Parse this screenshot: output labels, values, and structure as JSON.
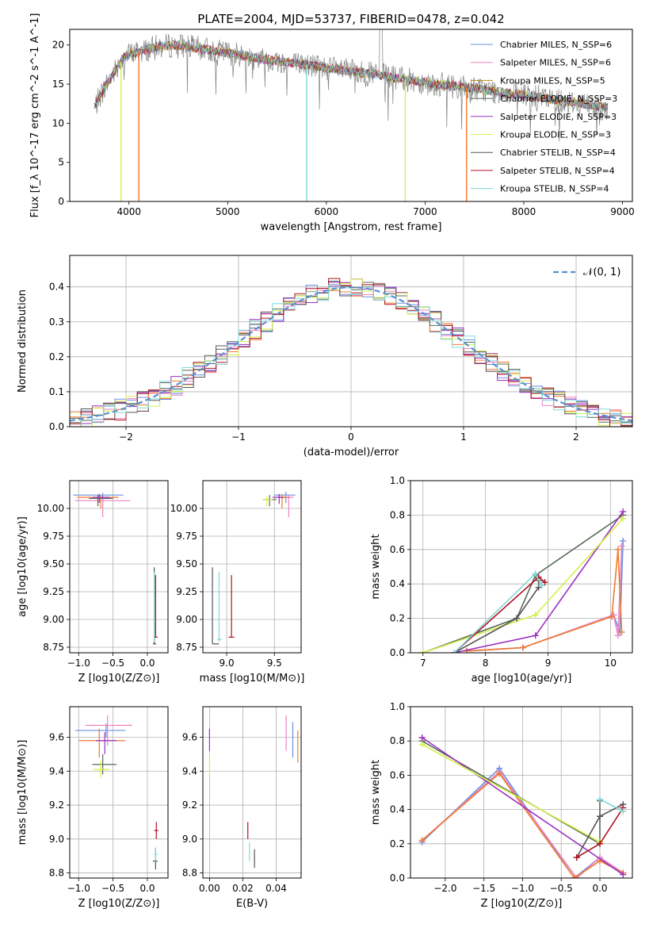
{
  "figure": {
    "title": "PLATE=2004, MJD=53737, FIBERID=0478, z=0.042"
  },
  "colors": {
    "chabrier_miles": "#6a8fe0",
    "salpeter_miles": "#ee82c0",
    "kroupa_miles": "#b8860b",
    "chabrier_elodie": "#556b55",
    "salpeter_elodie": "#9b30c0",
    "kroupa_elodie": "#d4f04a",
    "chabrier_stelib": "#555555",
    "salpeter_stelib": "#b01020",
    "kroupa_stelib": "#80d8d8",
    "orange": "#f07a30",
    "normal": "#5b8fd0",
    "grid": "#b0b0b0"
  },
  "chart_data": [
    {
      "id": "spectrum",
      "type": "line",
      "xlabel": "wavelength [Angstrom, rest frame]",
      "ylabel": "Flux [f_λ 10^-17 erg cm^-2 s^-1 A^-1]",
      "xlim": [
        3400,
        9100
      ],
      "ylim": [
        0,
        22
      ],
      "xticks": [
        4000,
        5000,
        6000,
        7000,
        8000,
        9000
      ],
      "yticks": [
        0,
        5,
        10,
        15,
        20
      ],
      "grid": false,
      "legend_position": "top-right",
      "continuum": {
        "x": [
          3650,
          3750,
          3850,
          3950,
          4050,
          4150,
          4300,
          4500,
          4700,
          5000,
          5300,
          5600,
          5900,
          6200,
          6500,
          6800,
          7100,
          7400,
          7700,
          8000,
          8300,
          8600,
          8850
        ],
        "y": [
          12.0,
          14.5,
          16.5,
          18.5,
          19.0,
          19.3,
          19.8,
          20.0,
          19.6,
          19.0,
          18.3,
          17.8,
          17.3,
          16.7,
          16.2,
          15.6,
          15.0,
          14.6,
          14.1,
          13.6,
          13.0,
          12.5,
          12.0
        ]
      },
      "series": [
        {
          "name": "Chabrier MILES, N_SSP=6",
          "color_key": "chabrier_miles"
        },
        {
          "name": "Salpeter MILES, N_SSP=6",
          "color_key": "salpeter_miles"
        },
        {
          "name": "Kroupa MILES, N_SSP=5",
          "color_key": "kroupa_miles"
        },
        {
          "name": "Chabrier ELODIE, N_SSP=3",
          "color_key": "chabrier_elodie"
        },
        {
          "name": "Salpeter ELODIE, N_SSP=3",
          "color_key": "salpeter_elodie"
        },
        {
          "name": "Kroupa ELODIE, N_SSP=3",
          "color_key": "kroupa_elodie"
        },
        {
          "name": "Chabrier STELIB, N_SSP=4",
          "color_key": "chabrier_stelib"
        },
        {
          "name": "Salpeter STELIB, N_SSP=4",
          "color_key": "salpeter_stelib"
        },
        {
          "name": "Kroupa STELIB, N_SSP=4",
          "color_key": "kroupa_stelib"
        }
      ],
      "drops": [
        {
          "x": 3920,
          "color_key": "kroupa_elodie"
        },
        {
          "x": 4100,
          "color_key": "orange"
        },
        {
          "x": 5800,
          "color_key": "kroupa_stelib"
        },
        {
          "x": 6800,
          "color_key": "kroupa_elodie"
        },
        {
          "x": 7420,
          "color_key": "orange"
        }
      ]
    },
    {
      "id": "residuals",
      "type": "histogram",
      "xlabel": "(data-model)/error",
      "ylabel": "Normed distribution",
      "xlim": [
        -2.5,
        2.5
      ],
      "ylim": [
        0,
        0.49
      ],
      "xticks": [
        -2,
        -1,
        0,
        1,
        2
      ],
      "yticks": [
        0.0,
        0.1,
        0.2,
        0.3,
        0.4
      ],
      "grid": true,
      "legend_position": "top-right",
      "legend": "𝒩(0, 1)",
      "bin_width": 0.1
    },
    {
      "id": "age_vs_Z",
      "type": "errorbar",
      "xlabel": "Z [log10(Z/Z⊙)]",
      "ylabel": "age  [log10(age/yr)]",
      "xlim": [
        -1.13,
        0.3
      ],
      "ylim": [
        8.7,
        10.25
      ],
      "xticks": [
        -1.0,
        -0.5,
        0.0
      ],
      "yticks": [
        8.75,
        9.0,
        9.25,
        9.5,
        9.75,
        10.0
      ],
      "grid": true,
      "points": [
        {
          "x": -0.65,
          "xlo": -1.08,
          "xhi": -0.35,
          "y": 10.12,
          "ylo": 10.05,
          "yhi": 10.14,
          "color_key": "chabrier_miles"
        },
        {
          "x": -0.65,
          "xlo": -1.05,
          "xhi": -0.25,
          "y": 10.07,
          "ylo": 9.92,
          "yhi": 10.1,
          "color_key": "salpeter_miles"
        },
        {
          "x": -0.68,
          "xlo": -1.02,
          "xhi": -0.42,
          "y": 10.1,
          "ylo": 10.0,
          "yhi": 10.12,
          "color_key": "orange"
        },
        {
          "x": -0.72,
          "xlo": -0.85,
          "xhi": -0.5,
          "y": 10.09,
          "ylo": 10.02,
          "yhi": 10.12,
          "color_key": "chabrier_elodie"
        },
        {
          "x": -0.7,
          "xlo": -0.8,
          "xhi": -0.55,
          "y": 10.1,
          "ylo": 10.05,
          "yhi": 10.13,
          "color_key": "salpeter_elodie"
        },
        {
          "x": 0.1,
          "xlo": 0.08,
          "xhi": 0.13,
          "y": 8.78,
          "ylo": 8.78,
          "yhi": 9.47,
          "color_key": "chabrier_stelib"
        },
        {
          "x": 0.12,
          "xlo": 0.1,
          "xhi": 0.15,
          "y": 8.84,
          "ylo": 8.84,
          "yhi": 9.4,
          "color_key": "salpeter_stelib"
        },
        {
          "x": 0.1,
          "xlo": 0.09,
          "xhi": 0.12,
          "y": 8.82,
          "ylo": 8.8,
          "yhi": 9.43,
          "color_key": "kroupa_stelib"
        }
      ]
    },
    {
      "id": "age_vs_mass",
      "type": "errorbar",
      "xlabel": "mass [log10(M/M⊙)]",
      "ylabel": "",
      "xlim": [
        8.75,
        9.78
      ],
      "ylim": [
        8.7,
        10.25
      ],
      "xticks": [
        9.0,
        9.5
      ],
      "yticks": [
        8.75,
        9.0,
        9.25,
        9.5,
        9.75,
        10.0
      ],
      "grid": true,
      "points": [
        {
          "x": 9.62,
          "xlo": 9.5,
          "xhi": 9.72,
          "y": 10.12,
          "ylo": 10.05,
          "yhi": 10.15,
          "color_key": "chabrier_miles"
        },
        {
          "x": 9.65,
          "xlo": 9.55,
          "xhi": 9.7,
          "y": 10.1,
          "ylo": 9.92,
          "yhi": 10.12,
          "color_key": "salpeter_miles"
        },
        {
          "x": 9.58,
          "xlo": 9.5,
          "xhi": 9.65,
          "y": 10.1,
          "ylo": 10.0,
          "yhi": 10.13,
          "color_key": "orange"
        },
        {
          "x": 9.45,
          "xlo": 9.38,
          "xhi": 9.52,
          "y": 10.08,
          "ylo": 10.02,
          "yhi": 10.12,
          "color_key": "chabrier_elodie"
        },
        {
          "x": 9.55,
          "xlo": 9.48,
          "xhi": 9.6,
          "y": 10.1,
          "ylo": 10.04,
          "yhi": 10.13,
          "color_key": "salpeter_elodie"
        },
        {
          "x": 9.42,
          "xlo": 9.38,
          "xhi": 9.48,
          "y": 10.08,
          "ylo": 10.02,
          "yhi": 10.11,
          "color_key": "kroupa_elodie"
        },
        {
          "x": 8.85,
          "xlo": 8.85,
          "xhi": 8.92,
          "y": 8.78,
          "ylo": 8.78,
          "yhi": 9.47,
          "color_key": "chabrier_stelib"
        },
        {
          "x": 9.05,
          "xlo": 9.02,
          "xhi": 9.08,
          "y": 8.84,
          "ylo": 8.84,
          "yhi": 9.4,
          "color_key": "salpeter_stelib"
        },
        {
          "x": 8.92,
          "xlo": 8.9,
          "xhi": 8.95,
          "y": 8.82,
          "ylo": 8.8,
          "yhi": 9.43,
          "color_key": "kroupa_stelib"
        }
      ]
    },
    {
      "id": "mass_weight_vs_age",
      "type": "line",
      "xlabel": "age  [log10(age/yr)]",
      "ylabel": "mass weight",
      "xlim": [
        6.8,
        10.35
      ],
      "ylim": [
        0,
        1.0
      ],
      "xticks": [
        7,
        8,
        9,
        10
      ],
      "yticks": [
        0.0,
        0.2,
        0.4,
        0.6,
        0.8,
        1.0
      ],
      "grid": true,
      "series": [
        {
          "color_key": "chabrier_miles",
          "x": [
            7.7,
            8.6,
            10.05,
            10.15,
            10.2
          ],
          "y": [
            0.01,
            0.03,
            0.22,
            0.12,
            0.65
          ]
        },
        {
          "color_key": "salpeter_miles",
          "x": [
            7.7,
            8.6,
            10.05,
            10.12,
            10.18
          ],
          "y": [
            0.01,
            0.03,
            0.22,
            0.1,
            0.62
          ]
        },
        {
          "color_key": "orange",
          "x": [
            7.7,
            8.6,
            10.02,
            10.12,
            10.18
          ],
          "y": [
            0.01,
            0.03,
            0.21,
            0.6,
            0.12
          ]
        },
        {
          "color_key": "chabrier_elodie",
          "x": [
            7.0,
            8.5,
            8.8,
            10.2
          ],
          "y": [
            0.0,
            0.2,
            0.45,
            0.8
          ]
        },
        {
          "color_key": "salpeter_elodie",
          "x": [
            7.5,
            8.8,
            10.2
          ],
          "y": [
            0.0,
            0.1,
            0.82
          ]
        },
        {
          "color_key": "kroupa_elodie",
          "x": [
            7.0,
            8.8,
            10.2
          ],
          "y": [
            0.0,
            0.22,
            0.78
          ]
        },
        {
          "color_key": "chabrier_stelib",
          "x": [
            7.5,
            8.5,
            8.85,
            8.85
          ],
          "y": [
            0.0,
            0.2,
            0.38,
            0.42
          ]
        },
        {
          "color_key": "salpeter_stelib",
          "x": [
            7.5,
            8.85,
            8.95
          ],
          "y": [
            0.0,
            0.44,
            0.41
          ]
        },
        {
          "color_key": "kroupa_stelib",
          "x": [
            7.5,
            8.8,
            8.9
          ],
          "y": [
            0.0,
            0.46,
            0.39
          ]
        }
      ]
    },
    {
      "id": "mass_vs_Z",
      "type": "errorbar",
      "xlabel": "Z [log10(Z/Z⊙)]",
      "ylabel": "mass [log10(M/M⊙)]",
      "xlim": [
        -1.13,
        0.3
      ],
      "ylim": [
        8.77,
        9.78
      ],
      "xticks": [
        -1.0,
        -0.5,
        0.0
      ],
      "yticks": [
        8.8,
        9.0,
        9.2,
        9.4,
        9.6
      ],
      "grid": true,
      "points": [
        {
          "x": -0.6,
          "xlo": -1.05,
          "xhi": -0.32,
          "y": 9.64,
          "ylo": 9.6,
          "yhi": 9.68,
          "color_key": "chabrier_miles"
        },
        {
          "x": -0.58,
          "xlo": -0.9,
          "xhi": -0.22,
          "y": 9.67,
          "ylo": 9.55,
          "yhi": 9.73,
          "color_key": "salpeter_miles"
        },
        {
          "x": -0.7,
          "xlo": -1.0,
          "xhi": -0.32,
          "y": 9.58,
          "ylo": 9.48,
          "yhi": 9.65,
          "color_key": "orange"
        },
        {
          "x": -0.65,
          "xlo": -0.8,
          "xhi": -0.45,
          "y": 9.44,
          "ylo": 9.38,
          "yhi": 9.5,
          "color_key": "chabrier_elodie"
        },
        {
          "x": -0.62,
          "xlo": -0.75,
          "xhi": -0.45,
          "y": 9.58,
          "ylo": 9.5,
          "yhi": 9.63,
          "color_key": "salpeter_elodie"
        },
        {
          "x": -0.68,
          "xlo": -0.78,
          "xhi": -0.55,
          "y": 9.41,
          "ylo": 9.36,
          "yhi": 9.46,
          "color_key": "kroupa_elodie"
        },
        {
          "x": 0.12,
          "xlo": 0.08,
          "xhi": 0.15,
          "y": 8.87,
          "ylo": 8.82,
          "yhi": 8.95,
          "color_key": "chabrier_stelib"
        },
        {
          "x": 0.13,
          "xlo": 0.1,
          "xhi": 0.16,
          "y": 9.05,
          "ylo": 9.0,
          "yhi": 9.1,
          "color_key": "salpeter_stelib"
        },
        {
          "x": 0.12,
          "xlo": 0.1,
          "xhi": 0.15,
          "y": 8.91,
          "ylo": 8.87,
          "yhi": 8.95,
          "color_key": "kroupa_stelib"
        }
      ]
    },
    {
      "id": "mass_vs_ebv",
      "type": "errorbar",
      "xlabel": "E(B-V)",
      "ylabel": "",
      "xlim": [
        -0.004,
        0.055
      ],
      "ylim": [
        8.77,
        9.78
      ],
      "xticks": [
        0.0,
        0.02,
        0.04
      ],
      "yticks": [
        8.8,
        9.0,
        9.2,
        9.4,
        9.6
      ],
      "grid": true,
      "points": [
        {
          "x": 0.0,
          "xlo": 0.0,
          "xhi": 0.0,
          "y": 9.58,
          "ylo": 9.52,
          "yhi": 9.65,
          "color_key": "salpeter_elodie"
        },
        {
          "x": 0.0,
          "xlo": 0.0,
          "xhi": 0.0,
          "y": 9.43,
          "ylo": 9.38,
          "yhi": 9.49,
          "color_key": "kroupa_elodie"
        },
        {
          "x": 0.023,
          "xlo": 0.023,
          "xhi": 0.023,
          "y": 9.05,
          "ylo": 9.0,
          "yhi": 9.1,
          "color_key": "salpeter_stelib"
        },
        {
          "x": 0.024,
          "xlo": 0.024,
          "xhi": 0.024,
          "y": 8.91,
          "ylo": 8.87,
          "yhi": 8.98,
          "color_key": "kroupa_stelib"
        },
        {
          "x": 0.027,
          "xlo": 0.027,
          "xhi": 0.027,
          "y": 8.88,
          "ylo": 8.83,
          "yhi": 8.94,
          "color_key": "chabrier_stelib"
        },
        {
          "x": 0.046,
          "xlo": 0.046,
          "xhi": 0.046,
          "y": 9.63,
          "ylo": 9.52,
          "yhi": 9.73,
          "color_key": "salpeter_miles"
        },
        {
          "x": 0.05,
          "xlo": 0.05,
          "xhi": 0.05,
          "y": 9.6,
          "ylo": 9.48,
          "yhi": 9.69,
          "color_key": "chabrier_miles"
        },
        {
          "x": 0.053,
          "xlo": 0.053,
          "xhi": 0.053,
          "y": 9.56,
          "ylo": 9.45,
          "yhi": 9.64,
          "color_key": "orange"
        }
      ]
    },
    {
      "id": "mass_weight_vs_Z",
      "type": "line",
      "xlabel": "Z [log10(Z/Z⊙)]",
      "ylabel": "mass weight",
      "xlim": [
        -2.45,
        0.42
      ],
      "ylim": [
        0,
        1.0
      ],
      "xticks": [
        -2.0,
        -1.5,
        -1.0,
        -0.5,
        0.0
      ],
      "yticks": [
        0.0,
        0.2,
        0.4,
        0.6,
        0.8,
        1.0
      ],
      "grid": true,
      "series": [
        {
          "color_key": "chabrier_miles",
          "x": [
            -2.3,
            -1.3,
            -0.33,
            0.0,
            0.3
          ],
          "y": [
            0.21,
            0.64,
            0.0,
            0.12,
            0.03
          ]
        },
        {
          "color_key": "salpeter_miles",
          "x": [
            -2.3,
            -1.3,
            -0.3,
            0.0,
            0.3
          ],
          "y": [
            0.22,
            0.62,
            0.0,
            0.12,
            0.03
          ]
        },
        {
          "color_key": "orange",
          "x": [
            -2.3,
            -1.3,
            -0.33,
            0.0,
            0.3
          ],
          "y": [
            0.22,
            0.61,
            0.0,
            0.1,
            0.03
          ]
        },
        {
          "color_key": "chabrier_elodie",
          "x": [
            -2.3,
            0.0,
            0.0
          ],
          "y": [
            0.8,
            0.2,
            0.45
          ]
        },
        {
          "color_key": "salpeter_elodie",
          "x": [
            -2.3,
            0.3
          ],
          "y": [
            0.82,
            0.02
          ]
        },
        {
          "color_key": "kroupa_elodie",
          "x": [
            -2.3,
            0.0
          ],
          "y": [
            0.78,
            0.21
          ]
        },
        {
          "color_key": "chabrier_stelib",
          "x": [
            -0.3,
            0.0,
            0.3
          ],
          "y": [
            0.12,
            0.36,
            0.43
          ]
        },
        {
          "color_key": "salpeter_stelib",
          "x": [
            -0.3,
            0.0,
            0.3
          ],
          "y": [
            0.12,
            0.2,
            0.41
          ]
        },
        {
          "color_key": "kroupa_stelib",
          "x": [
            0.0,
            0.3
          ],
          "y": [
            0.46,
            0.39
          ]
        }
      ]
    }
  ]
}
